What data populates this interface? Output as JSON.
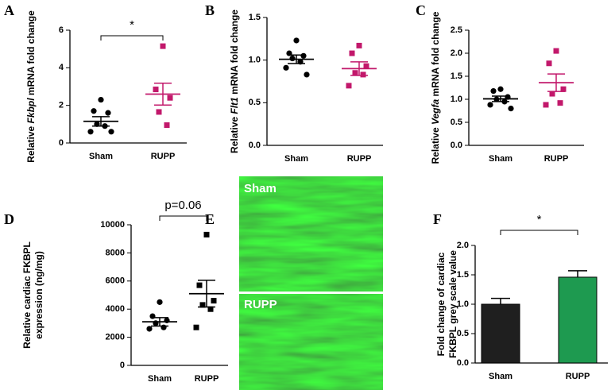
{
  "chart_data": [
    {
      "type": "dot",
      "panel": "A",
      "ylabel": [
        "Relative ",
        "Fkbpl",
        " mRNA fold change"
      ],
      "ylabel_italic": 1,
      "categories": [
        "Sham",
        "RUPP"
      ],
      "colors": [
        "#000000",
        "#c2186b"
      ],
      "markers": [
        "circle",
        "square"
      ],
      "values": [
        [
          2.3,
          1.7,
          1.6,
          1.0,
          0.9,
          0.6,
          0.6
        ],
        [
          5.15,
          2.85,
          2.4,
          1.65,
          0.95
        ]
      ],
      "means": [
        1.15,
        2.6
      ],
      "sems": [
        0.25,
        0.58
      ],
      "annotation": "*",
      "ylim": [
        0,
        6
      ],
      "yticks": [
        0,
        2,
        4,
        6
      ]
    },
    {
      "type": "dot",
      "panel": "B",
      "ylabel": [
        "Relative ",
        "Flt1",
        " mRNA fold change"
      ],
      "ylabel_italic": 1,
      "categories": [
        "Sham",
        "RUPP"
      ],
      "colors": [
        "#000000",
        "#c2186b"
      ],
      "markers": [
        "circle",
        "square"
      ],
      "values": [
        [
          1.23,
          1.08,
          1.05,
          1.02,
          0.98,
          0.91,
          0.83
        ],
        [
          1.17,
          1.08,
          0.93,
          0.85,
          0.83,
          0.7
        ]
      ],
      "means": [
        1.01,
        0.9
      ],
      "sems": [
        0.05,
        0.08
      ],
      "ylim": [
        0,
        1.5
      ],
      "yticks": [
        {
          "value": 0,
          "label": "0.0"
        },
        0.5,
        {
          "value": 1,
          "label": "1.0"
        },
        1.5
      ]
    },
    {
      "type": "dot",
      "panel": "C",
      "ylabel": [
        "Relative ",
        "Vegfa",
        " mRNA fold change"
      ],
      "ylabel_italic": 1,
      "categories": [
        "Sham",
        "RUPP"
      ],
      "colors": [
        "#000000",
        "#c2186b"
      ],
      "markers": [
        "circle",
        "square"
      ],
      "values": [
        [
          1.22,
          1.18,
          1.05,
          1.0,
          0.95,
          0.88,
          0.8
        ],
        [
          2.05,
          1.78,
          1.22,
          1.12,
          0.92,
          0.88
        ]
      ],
      "means": [
        1.01,
        1.36
      ],
      "sems": [
        0.06,
        0.19
      ],
      "ylim": [
        0,
        2.5
      ],
      "yticks": [
        {
          "value": 0,
          "label": "0.0"
        },
        0.5,
        {
          "value": 1,
          "label": "1.0"
        },
        1.5,
        {
          "value": 2,
          "label": "2.0"
        },
        2.5
      ]
    },
    {
      "type": "dot",
      "panel": "D",
      "ylabel_lines": [
        "Relative cardiac FKBPL",
        "expression (ng/mg)"
      ],
      "categories": [
        "Sham",
        "RUPP"
      ],
      "colors": [
        "#000000",
        "#000000"
      ],
      "markers": [
        "circle",
        "square"
      ],
      "values": [
        [
          4500,
          3500,
          3200,
          3000,
          2700,
          2600
        ],
        [
          9300,
          5700,
          4600,
          4300,
          4000,
          2700
        ]
      ],
      "means": [
        3100,
        5100
      ],
      "sems": [
        300,
        950
      ],
      "annotation": "p=0.06",
      "ylim": [
        0,
        10000
      ],
      "yticks": [
        0,
        2000,
        4000,
        6000,
        8000,
        10000
      ]
    },
    {
      "type": "bar",
      "panel": "F",
      "ylabel_lines": [
        "Fold change of cardiac",
        "FKBPL grey scale value"
      ],
      "categories": [
        "Sham",
        "RUPP"
      ],
      "colors": [
        "#1f1f1f",
        "#1e9a50"
      ],
      "values": [
        1.0,
        1.46
      ],
      "errors": [
        0.1,
        0.11
      ],
      "annotation": "*",
      "ylim": [
        0,
        2
      ],
      "yticks": [
        {
          "value": 0,
          "label": "0.0"
        },
        0.5,
        {
          "value": 1,
          "label": "1.0"
        },
        1.5,
        {
          "value": 2,
          "label": "2.0"
        }
      ]
    }
  ],
  "images": {
    "panel": "E",
    "labels": [
      "Sham",
      "RUPP"
    ]
  }
}
